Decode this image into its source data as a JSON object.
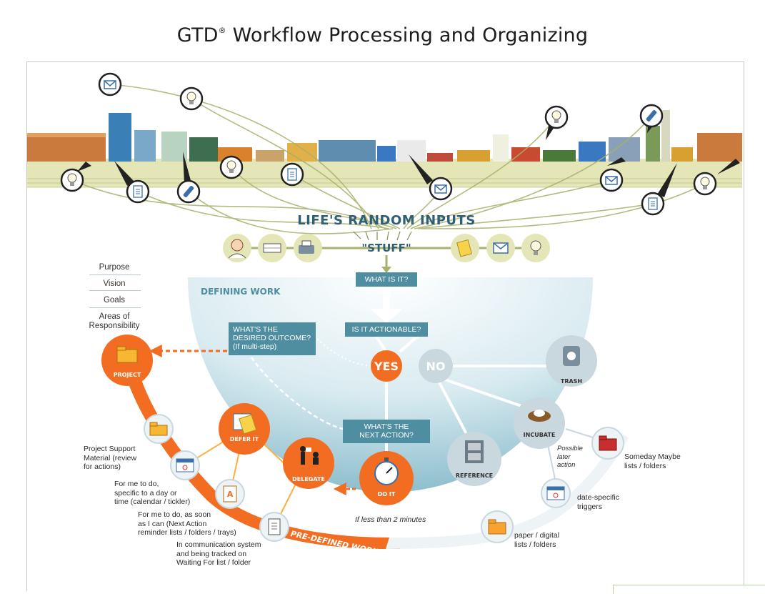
{
  "title": {
    "main": "GTD",
    "mark": "®",
    "rest": " Workflow Processing and Organizing"
  },
  "inputs": {
    "heading": "LIFE'S RANDOM INPUTS",
    "stuff": "\"STUFF\""
  },
  "defining_work": "DEFINING WORK",
  "pre_defined_work": "PRE-DEFINED WORK",
  "horizons": [
    "Purpose",
    "Vision",
    "Goals",
    "Areas of Responsibility"
  ],
  "questions": {
    "what_is_it": "WHAT IS IT?",
    "actionable": "IS IT ACTIONABLE?",
    "desired_outcome": [
      "WHAT'S THE",
      "DESIRED OUTCOME?",
      "(If multi-step)"
    ],
    "next_action": [
      "WHAT'S THE",
      "NEXT ACTION?"
    ]
  },
  "nodes": {
    "yes": "YES",
    "no": "NO",
    "trash": "TRASH",
    "incubate": "INCUBATE",
    "reference": "REFERENCE",
    "project": "PROJECT",
    "defer": "DEFER IT",
    "delegate": "DELEGATE",
    "do": "DO IT"
  },
  "notes": {
    "do_it": "If less than 2 minutes",
    "possible_later": [
      "Possible",
      "later",
      "action"
    ],
    "someday": [
      "Someday Maybe",
      "lists / folders"
    ],
    "date_triggers": [
      "date-specific",
      "triggers"
    ],
    "paper_digital": [
      "paper / digital",
      "lists / folders"
    ],
    "project_support": [
      "Project Support",
      "Material (review",
      "for actions)"
    ],
    "calendar": [
      "For me to do,",
      "specific to a day or",
      "time (calendar / tickler)"
    ],
    "next_action_lists": [
      "For me to do, as soon",
      "as I can (Next Action",
      "reminder lists / folders / trays)"
    ],
    "waiting_for": [
      "In communication system",
      "and being tracked on",
      "Waiting For list / folder"
    ]
  },
  "colors": {
    "orange": "#f26d21",
    "teal": "#4e8ea0",
    "sky": "#8fc0d0",
    "grey_node": "#c9d7df",
    "olive": "#a8b06a",
    "ground": "#e4e6b8"
  },
  "icons": [
    "envelope-icon",
    "lightbulb-icon",
    "telephone-icon",
    "document-icon",
    "folder-icon",
    "calendar-icon",
    "trash-can-icon",
    "nest-icon",
    "filing-cabinet-icon",
    "stopwatch-icon",
    "person-icon",
    "inbox-tray-icon",
    "fax-icon",
    "sticky-note-icon"
  ]
}
